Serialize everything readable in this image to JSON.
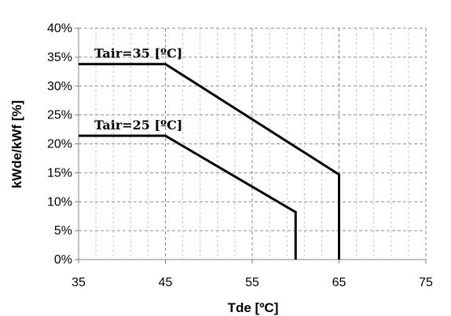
{
  "chart_data": {
    "type": "line",
    "title": "",
    "xlabel": "Tde [ºC]",
    "ylabel": "kWde/kWf [%]",
    "xlim": [
      35,
      75
    ],
    "ylim": [
      0,
      40
    ],
    "x_ticks": [
      35,
      45,
      55,
      65,
      75
    ],
    "x_tick_labels": [
      "35",
      "45",
      "55",
      "65",
      "75"
    ],
    "y_ticks": [
      0,
      5,
      10,
      15,
      20,
      25,
      30,
      35,
      40
    ],
    "y_tick_labels": [
      "0%",
      "5%",
      "10%",
      "15%",
      "20%",
      "25%",
      "30%",
      "35%",
      "40%"
    ],
    "grid": true,
    "grid_style": "dashed",
    "x_minor_ticks": [
      37,
      39,
      41,
      43,
      47,
      49,
      51,
      53,
      57,
      59,
      61,
      63,
      67,
      69,
      71,
      73
    ],
    "series": [
      {
        "label": "Tair=35 [ºC]",
        "color": "#000000",
        "points": [
          [
            35,
            33.8
          ],
          [
            45,
            33.8
          ],
          [
            65,
            14.7
          ],
          [
            65,
            0
          ]
        ]
      },
      {
        "label": "Tair=25 [ºC]",
        "color": "#000000",
        "points": [
          [
            35,
            21.4
          ],
          [
            45,
            21.4
          ],
          [
            60,
            8.2
          ],
          [
            60,
            0
          ]
        ]
      }
    ]
  }
}
